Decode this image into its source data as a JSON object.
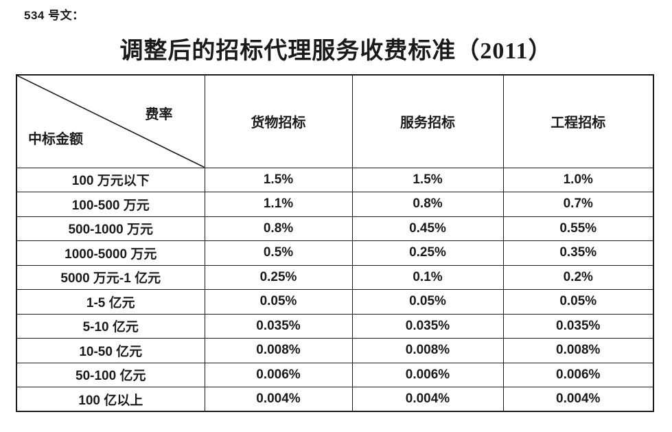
{
  "doc_label": "534 号文：",
  "title": "调整后的招标代理服务收费标准（2011）",
  "colors": {
    "text": "#1a1a1a",
    "border": "#1a1a1a",
    "background": "#ffffff"
  },
  "table": {
    "corner": {
      "top_right": "费率",
      "bottom_left": "中标金额"
    },
    "columns": [
      "货物招标",
      "服务招标",
      "工程招标"
    ],
    "rows": [
      {
        "amount": "100 万元以下",
        "rates": [
          "1.5%",
          "1.5%",
          "1.0%"
        ]
      },
      {
        "amount": "100-500 万元",
        "rates": [
          "1.1%",
          "0.8%",
          "0.7%"
        ]
      },
      {
        "amount": "500-1000 万元",
        "rates": [
          "0.8%",
          "0.45%",
          "0.55%"
        ]
      },
      {
        "amount": "1000-5000 万元",
        "rates": [
          "0.5%",
          "0.25%",
          "0.35%"
        ]
      },
      {
        "amount": "5000 万元-1 亿元",
        "rates": [
          "0.25%",
          "0.1%",
          "0.2%"
        ]
      },
      {
        "amount": "1-5 亿元",
        "rates": [
          "0.05%",
          "0.05%",
          "0.05%"
        ]
      },
      {
        "amount": "5-10 亿元",
        "rates": [
          "0.035%",
          "0.035%",
          "0.035%"
        ]
      },
      {
        "amount": "10-50 亿元",
        "rates": [
          "0.008%",
          "0.008%",
          "0.008%"
        ]
      },
      {
        "amount": "50-100 亿元",
        "rates": [
          "0.006%",
          "0.006%",
          "0.006%"
        ]
      },
      {
        "amount": "100 亿以上",
        "rates": [
          "0.004%",
          "0.004%",
          "0.004%"
        ]
      }
    ]
  }
}
